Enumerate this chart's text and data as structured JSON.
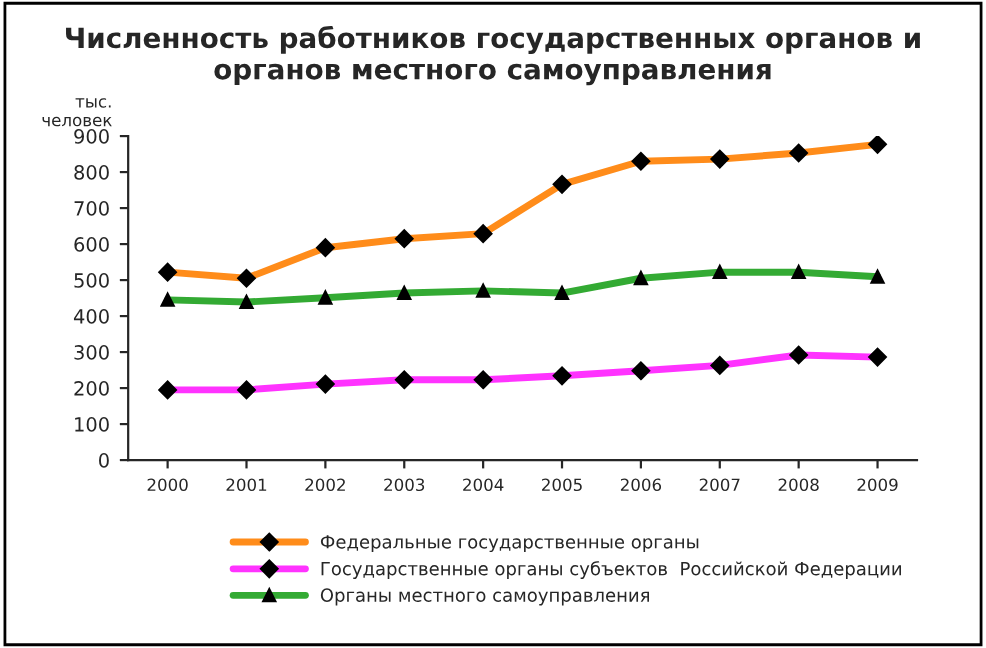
{
  "chart_data": {
    "type": "line",
    "title": "Численность работников государственных органов и\nорганов местного самоуправления",
    "ylabel": "тыс.\nчеловек",
    "categories": [
      "2000",
      "2001",
      "2002",
      "2003",
      "2004",
      "2005",
      "2006",
      "2007",
      "2008",
      "2009"
    ],
    "series": [
      {
        "name": "Федеральные государственные органы",
        "color": "#ff8c1a",
        "marker": "diamond",
        "values": [
          522,
          505,
          590,
          615,
          629,
          766,
          830,
          836,
          853,
          877
        ]
      },
      {
        "name": "Государственные органы субъектов  Российской Федерации",
        "color": "#ff33ff",
        "marker": "diamond",
        "values": [
          195,
          195,
          211,
          223,
          223,
          234,
          248,
          263,
          292,
          286
        ]
      },
      {
        "name": "Органы местного самоуправления",
        "color": "#33aa33",
        "marker": "triangle",
        "values": [
          445,
          439,
          451,
          464,
          470,
          464,
          505,
          522,
          522,
          509
        ]
      }
    ],
    "ylim": [
      0,
      900
    ],
    "yticks": [
      0,
      100,
      200,
      300,
      400,
      500,
      600,
      700,
      800,
      900
    ],
    "grid": false,
    "legend": "bottom",
    "line_style": "solid"
  }
}
